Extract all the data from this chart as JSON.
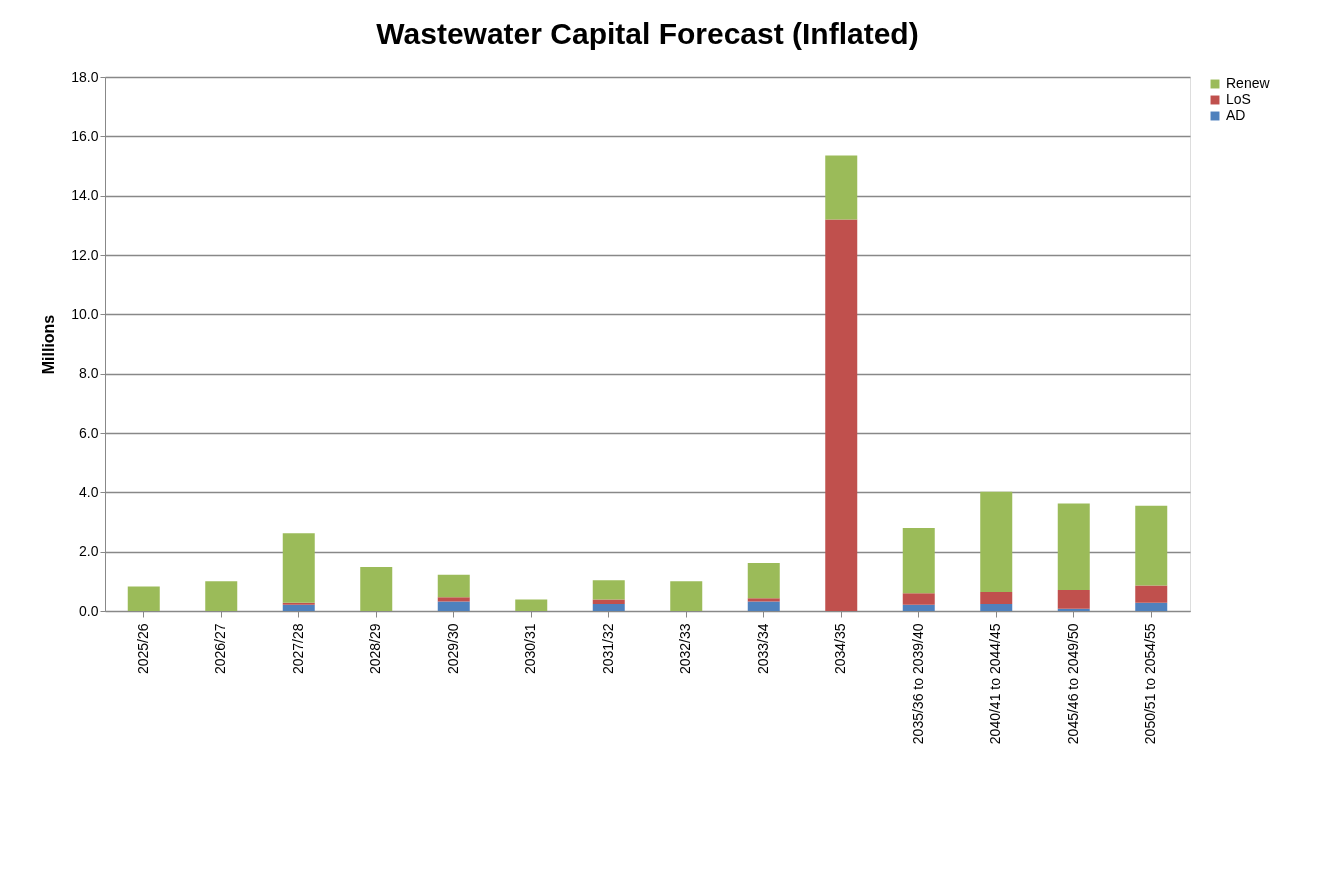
{
  "chart_data": {
    "type": "bar",
    "title": "Wastewater Capital Forecast (Inflated)",
    "ylabel": "Millions",
    "categories": [
      "2025/26",
      "2026/27",
      "2027/28",
      "2028/29",
      "2029/30",
      "2030/31",
      "2031/32",
      "2032/33",
      "2033/34",
      "2034/35",
      "2035/36 to 2039/40",
      "2040/41 to 2044/45",
      "2045/46 to 2049/50",
      "2050/51 to 2054/55"
    ],
    "series": [
      {
        "name": "AD",
        "color": "#4f81bd",
        "values": [
          0,
          0,
          0.21,
          0,
          0.32,
          0,
          0.24,
          0,
          0.32,
          0,
          0.21,
          0.24,
          0.08,
          0.28
        ]
      },
      {
        "name": "LoS",
        "color": "#c0504d",
        "values": [
          0,
          0,
          0.07,
          0,
          0.14,
          0,
          0.15,
          0,
          0.11,
          13.2,
          0.39,
          0.4,
          0.63,
          0.58
        ]
      },
      {
        "name": "Renew",
        "color": "#9bbb59",
        "values": [
          0.83,
          1.0,
          2.34,
          1.48,
          0.76,
          0.39,
          0.65,
          1.0,
          1.19,
          2.15,
          2.2,
          3.38,
          2.91,
          2.69
        ]
      }
    ],
    "stacked": true,
    "ylim": [
      0,
      18
    ],
    "yticks": [
      {
        "value": 0,
        "label": "0.0"
      },
      {
        "value": 2,
        "label": "2.0"
      },
      {
        "value": 4,
        "label": "4.0"
      },
      {
        "value": 6,
        "label": "6.0"
      },
      {
        "value": 8,
        "label": "8.0"
      },
      {
        "value": 10,
        "label": "10.0"
      },
      {
        "value": 12,
        "label": "12.0"
      },
      {
        "value": 14,
        "label": "14.0"
      },
      {
        "value": 16,
        "label": "16.0"
      },
      {
        "value": 18,
        "label": "18.0"
      }
    ],
    "grid": "y",
    "legend": "right"
  }
}
